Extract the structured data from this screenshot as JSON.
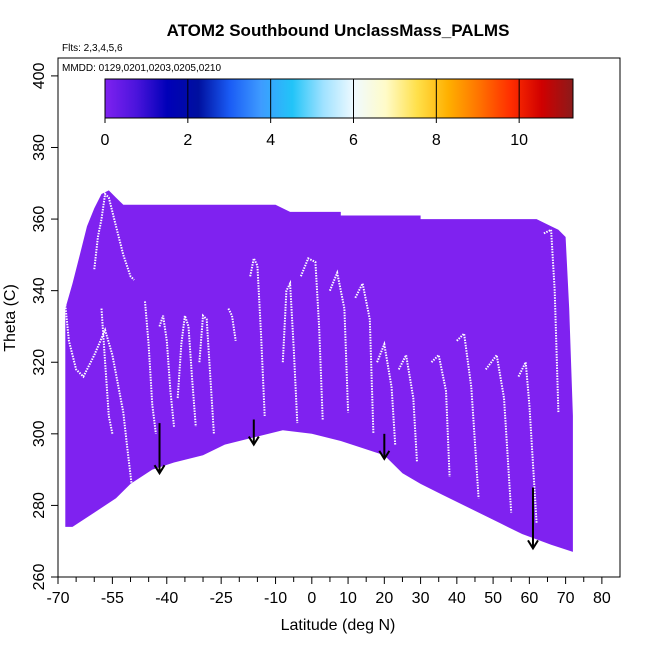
{
  "chart_data": {
    "type": "heatmap",
    "title": "ATOM2 Southbound UnclassMass_PALMS",
    "subtitle_flights": "Flts: 2,3,4,5,6",
    "subtitle_dates": "MMDD: 0129,0201,0203,0205,0210",
    "xlabel": "Latitude (deg N)",
    "ylabel": "Theta (C)",
    "xlim": [
      -70,
      85
    ],
    "ylim": [
      260,
      405
    ],
    "x_ticks": [
      -70,
      -55,
      -40,
      -25,
      -10,
      0,
      10,
      20,
      30,
      40,
      50,
      60,
      70,
      80
    ],
    "x_tick_labels": [
      "-70",
      "-55",
      "-40",
      "-25",
      "-10",
      "0",
      "10",
      "20",
      "30",
      "40",
      "50",
      "60",
      "70",
      "80"
    ],
    "x_minor_ticks": [
      -65,
      -60,
      -50,
      -45,
      -35,
      -30,
      -20,
      -15,
      -5,
      5,
      15,
      25,
      35,
      45,
      55,
      65,
      75
    ],
    "y_ticks": [
      260,
      280,
      300,
      320,
      340,
      360,
      380,
      400
    ],
    "y_tick_labels": [
      "260",
      "280",
      "300",
      "320",
      "340",
      "360",
      "380",
      "400"
    ],
    "colorbar": {
      "range": [
        0,
        11.3
      ],
      "ticks": [
        0,
        2,
        4,
        6,
        8,
        10
      ],
      "tick_labels": [
        "0",
        "2",
        "4",
        "6",
        "8",
        "10"
      ],
      "colors": [
        "#7f22f0",
        "#4b14dc",
        "#0000b8",
        "#00109f",
        "#1a5cf5",
        "#3e9bff",
        "#22c4f8",
        "#a0e2ff",
        "#f0faff",
        "#fffbc8",
        "#ffe04a",
        "#ffb000",
        "#ff7200",
        "#ff2e00",
        "#d00000",
        "#8b1a1a"
      ]
    },
    "background_value": 0.3,
    "background_color": "#7f22f0",
    "data_color": "#ffffff",
    "arrow_color": "#000000",
    "domain_top": [
      [
        -68,
        335
      ],
      [
        -66,
        342
      ],
      [
        -64,
        350
      ],
      [
        -62,
        358
      ],
      [
        -60,
        363
      ],
      [
        -58,
        367
      ],
      [
        -56,
        368
      ],
      [
        -54,
        366
      ],
      [
        -52,
        364
      ],
      [
        -50,
        364
      ],
      [
        -42,
        364
      ],
      [
        -38,
        364
      ],
      [
        -26,
        364
      ],
      [
        -24,
        364
      ],
      [
        -10,
        364
      ],
      [
        -6,
        362
      ],
      [
        0,
        362
      ],
      [
        8,
        362
      ],
      [
        8,
        361
      ],
      [
        30,
        361
      ],
      [
        30,
        360
      ],
      [
        62,
        360
      ],
      [
        66,
        358
      ],
      [
        68,
        357
      ],
      [
        70,
        355
      ],
      [
        71,
        335
      ],
      [
        72,
        305
      ],
      [
        72,
        268
      ]
    ],
    "domain_bottom": [
      [
        72,
        267
      ],
      [
        66,
        269
      ],
      [
        58,
        272
      ],
      [
        52,
        275
      ],
      [
        44,
        279
      ],
      [
        36,
        283
      ],
      [
        30,
        286
      ],
      [
        25,
        289
      ],
      [
        20,
        294
      ],
      [
        14,
        296
      ],
      [
        8,
        298
      ],
      [
        0,
        300
      ],
      [
        -8,
        301
      ],
      [
        -16,
        299
      ],
      [
        -24,
        297
      ],
      [
        -30,
        294
      ],
      [
        -38,
        292
      ],
      [
        -44,
        290
      ],
      [
        -50,
        286
      ],
      [
        -54,
        282
      ],
      [
        -60,
        278
      ],
      [
        -66,
        274
      ],
      [
        -68,
        274
      ]
    ],
    "arrows_at_latitude": [
      -42,
      -16,
      20,
      61
    ],
    "arrow_tail_theta": [
      303,
      304,
      300,
      285
    ],
    "arrow_head_theta": [
      289,
      297,
      293,
      268
    ],
    "data_tracks": [
      [
        [
          -68,
          336
        ],
        [
          -67,
          326
        ],
        [
          -65,
          318
        ],
        [
          -63,
          316
        ],
        [
          -60,
          322
        ],
        [
          -57,
          329
        ],
        [
          -55,
          322
        ],
        [
          -52,
          306
        ],
        [
          -51,
          297
        ],
        [
          -49,
          280
        ]
      ],
      [
        [
          -60,
          346
        ],
        [
          -59,
          355
        ],
        [
          -58,
          360
        ],
        [
          -57,
          367
        ],
        [
          -56,
          366
        ],
        [
          -54,
          358
        ],
        [
          -52,
          350
        ],
        [
          -50,
          344
        ],
        [
          -49,
          343
        ]
      ],
      [
        [
          -58,
          335
        ],
        [
          -57,
          320
        ],
        [
          -56,
          305
        ],
        [
          -55,
          300
        ]
      ],
      [
        [
          -46,
          337
        ],
        [
          -45,
          325
        ],
        [
          -44,
          308
        ],
        [
          -43,
          300
        ]
      ],
      [
        [
          -42,
          330
        ],
        [
          -41,
          333
        ],
        [
          -40,
          326
        ],
        [
          -39,
          312
        ],
        [
          -38,
          302
        ]
      ],
      [
        [
          -37,
          310
        ],
        [
          -36,
          325
        ],
        [
          -35,
          333
        ],
        [
          -34,
          330
        ],
        [
          -33,
          315
        ],
        [
          -32,
          302
        ]
      ],
      [
        [
          -31,
          320
        ],
        [
          -30,
          333
        ],
        [
          -29,
          332
        ],
        [
          -28,
          316
        ],
        [
          -27,
          300
        ]
      ],
      [
        [
          -23,
          335
        ],
        [
          -22,
          333
        ],
        [
          -21,
          326
        ]
      ],
      [
        [
          -17,
          344
        ],
        [
          -16,
          349
        ],
        [
          -15,
          347
        ],
        [
          -14,
          328
        ],
        [
          -13,
          305
        ]
      ],
      [
        [
          -8,
          320
        ],
        [
          -7,
          340
        ],
        [
          -6,
          342
        ],
        [
          -5,
          324
        ],
        [
          -4,
          303
        ]
      ],
      [
        [
          -3,
          344
        ],
        [
          -1,
          349
        ],
        [
          1,
          348
        ],
        [
          2,
          330
        ],
        [
          3,
          304
        ]
      ],
      [
        [
          5,
          340
        ],
        [
          7,
          345
        ],
        [
          9,
          335
        ],
        [
          10,
          306
        ]
      ],
      [
        [
          12,
          338
        ],
        [
          14,
          342
        ],
        [
          16,
          332
        ],
        [
          17,
          300
        ]
      ],
      [
        [
          18,
          320
        ],
        [
          20,
          325
        ],
        [
          22,
          313
        ],
        [
          23,
          297
        ]
      ],
      [
        [
          24,
          318
        ],
        [
          26,
          322
        ],
        [
          28,
          310
        ],
        [
          29,
          292
        ]
      ],
      [
        [
          33,
          320
        ],
        [
          35,
          322
        ],
        [
          37,
          312
        ],
        [
          38,
          288
        ]
      ],
      [
        [
          40,
          326
        ],
        [
          42,
          328
        ],
        [
          44,
          313
        ],
        [
          46,
          282
        ]
      ],
      [
        [
          48,
          318
        ],
        [
          51,
          322
        ],
        [
          53,
          310
        ],
        [
          55,
          278
        ]
      ],
      [
        [
          57,
          316
        ],
        [
          59,
          320
        ],
        [
          60,
          308
        ],
        [
          62,
          275
        ]
      ],
      [
        [
          64,
          356
        ],
        [
          66,
          357
        ],
        [
          67,
          340
        ],
        [
          68,
          306
        ]
      ]
    ]
  }
}
